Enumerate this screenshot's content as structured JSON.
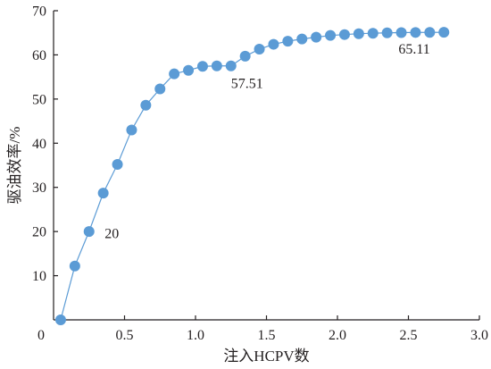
{
  "chart_data": {
    "type": "line",
    "xlabel": "注入HCPV数",
    "ylabel": "驱油效率/%",
    "xlim": [
      0,
      3.0
    ],
    "ylim": [
      0,
      70
    ],
    "xticks": [
      "0",
      "0.5",
      "1.0",
      "1.5",
      "2.0",
      "2.5",
      "3.0"
    ],
    "xtick_values": [
      0,
      0.5,
      1.0,
      1.5,
      2.0,
      2.5,
      3.0
    ],
    "yticks": [
      "10",
      "20",
      "30",
      "40",
      "50",
      "60",
      "70"
    ],
    "ytick_values": [
      10,
      20,
      30,
      40,
      50,
      60,
      70
    ],
    "grid": false,
    "series": [
      {
        "color": "#5b9bd5",
        "marker": "circle",
        "x": [
          0.05,
          0.15,
          0.25,
          0.35,
          0.45,
          0.55,
          0.65,
          0.75,
          0.85,
          0.95,
          1.05,
          1.15,
          1.25,
          1.35,
          1.45,
          1.55,
          1.65,
          1.75,
          1.85,
          1.95,
          2.05,
          2.15,
          2.25,
          2.35,
          2.45,
          2.55,
          2.65,
          2.75
        ],
        "y": [
          0,
          12.2,
          20.0,
          28.7,
          35.2,
          43.0,
          48.6,
          52.3,
          55.7,
          56.5,
          57.4,
          57.5,
          57.51,
          59.7,
          61.3,
          62.4,
          63.1,
          63.6,
          64.0,
          64.4,
          64.6,
          64.8,
          64.9,
          65.0,
          65.05,
          65.08,
          65.1,
          65.11
        ]
      }
    ],
    "annotations": [
      {
        "text": "20",
        "x": 0.36,
        "y": 18.5
      },
      {
        "text": "57.51",
        "x": 1.25,
        "y": 52.5
      },
      {
        "text": "65.11",
        "x": 2.43,
        "y": 60.3
      }
    ],
    "origin_label": "0"
  }
}
